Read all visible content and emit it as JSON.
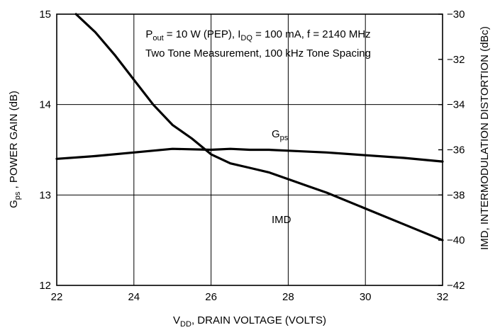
{
  "chart_data": {
    "type": "line",
    "annotation": {
      "line1": {
        "p": "P",
        "p_sub": "out",
        "a": " = 10 W (PEP), I",
        "i_sub": "DQ",
        "b": " = 100 mA, f = 2140 MHz"
      },
      "line2": "Two Tone Measurement, 100 kHz Tone Spacing"
    },
    "xlabel": {
      "v": "V",
      "v_sub": "DD",
      "rest": ", DRAIN VOLTAGE (VOLTS)"
    },
    "ylabel_left": {
      "g": "G",
      "g_sub": "ps",
      "rest": " , POWER GAIN (dB)"
    },
    "ylabel_right": "IMD, INTERMODULATION DISTORTION (dBc)",
    "xlim": [
      22,
      32
    ],
    "ylim_left": [
      12,
      15
    ],
    "ylim_right": [
      -42,
      -30
    ],
    "x_ticks": [
      "22",
      "24",
      "26",
      "28",
      "30",
      "32"
    ],
    "x_tick_values": [
      22,
      24,
      26,
      28,
      30,
      32
    ],
    "y_left_ticks": [
      "12",
      "13",
      "14",
      "15"
    ],
    "y_left_tick_values": [
      12,
      13,
      14,
      15
    ],
    "y_right_ticks": [
      "−42",
      "−40",
      "−38",
      "−36",
      "−34",
      "−32",
      "−30"
    ],
    "y_right_tick_values": [
      -42,
      -40,
      -38,
      -36,
      -34,
      -32,
      -30
    ],
    "grid": true,
    "series": [
      {
        "name": "G",
        "name_sub": "ps",
        "axis": "left",
        "x": [
          22,
          23,
          24,
          25,
          26,
          26.5,
          27,
          27.5,
          28,
          29,
          30,
          31,
          32
        ],
        "y": [
          13.4,
          13.43,
          13.47,
          13.51,
          13.5,
          13.51,
          13.5,
          13.5,
          13.49,
          13.47,
          13.44,
          13.41,
          13.37
        ]
      },
      {
        "name": "IMD",
        "axis": "right",
        "x": [
          22.5,
          23,
          23.5,
          24,
          24.5,
          25,
          25.5,
          26,
          26.5,
          27,
          27.5,
          28,
          28.5,
          29,
          30,
          31,
          32
        ],
        "y": [
          -30.0,
          -30.8,
          -31.8,
          -32.9,
          -34.0,
          -34.9,
          -35.5,
          -36.2,
          -36.6,
          -36.8,
          -37.0,
          -37.3,
          -37.6,
          -37.9,
          -38.6,
          -39.3,
          -40.0
        ]
      }
    ]
  }
}
